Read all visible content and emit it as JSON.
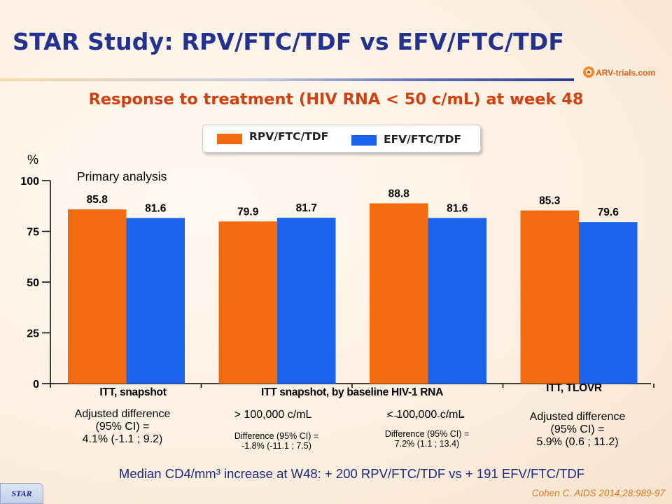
{
  "slide": {
    "title": "STAR Study: RPV/FTC/TDF vs EFV/FTC/TDF",
    "subtitle": "Response to treatment (HIV RNA < 50 c/mL) at week 48",
    "logo_text": "ARV-trials.com",
    "footnote": "Median CD4/mm³ increase at W48: + 200 RPV/FTC/TDF vs + 191 EFV/FTC/TDF",
    "tab_label": "STAR",
    "citation": "Cohen C. AIDS 2014;28:989-97"
  },
  "colors": {
    "rpv": "#f26b0f",
    "efv": "#1a63ef",
    "title": "#23318f",
    "subtitle": "#d0410f"
  },
  "legend": {
    "rpv_label": "RPV/FTC/TDF",
    "efv_label": "EFV/FTC/TDF"
  },
  "captions": {
    "group1_title": "ITT, snapshot",
    "group1_line1": "Adjusted difference",
    "group1_line2": "(95% CI) =",
    "group1_line3": "4.1% (-1.1 ; 9.2)",
    "group23_title": "ITT snapshot, by baseline HIV-1 RNA",
    "group2_stratum": "> 100,000 c/mL",
    "group2_diff_line1": "Difference (95% CI) =",
    "group2_diff_line2": "-1.8% (-11.1 ; 7.5)",
    "group3_stratum": "< 100,000 c/mL",
    "group3_diff_line1": "Difference (95% CI) =",
    "group3_diff_line2": "7.2% (1.1 ; 13.4)",
    "group4_title": "ITT, TLOVR",
    "group4_line1": "Adjusted difference",
    "group4_line2": "(95% CI) =",
    "group4_line3": "5.9% (0.6 ; 11.2)"
  },
  "chart_data": {
    "type": "bar",
    "ylabel": "%",
    "ylim": [
      0,
      100
    ],
    "yticks": [
      0,
      25,
      50,
      75,
      100
    ],
    "annotation": "Primary analysis",
    "categories": [
      "ITT, snapshot",
      "> 100,000 c/mL",
      "< 100,000 c/mL",
      "ITT, TLOVR"
    ],
    "series": [
      {
        "name": "RPV/FTC/TDF",
        "values": [
          85.8,
          79.9,
          88.8,
          85.3
        ],
        "labels": [
          "85.8",
          "79.9",
          "88.8",
          "85.3"
        ]
      },
      {
        "name": "EFV/FTC/TDF",
        "values": [
          81.6,
          81.7,
          81.6,
          79.6
        ],
        "labels": [
          "81.6",
          "81.7",
          "81.6",
          "79.6"
        ]
      }
    ]
  }
}
